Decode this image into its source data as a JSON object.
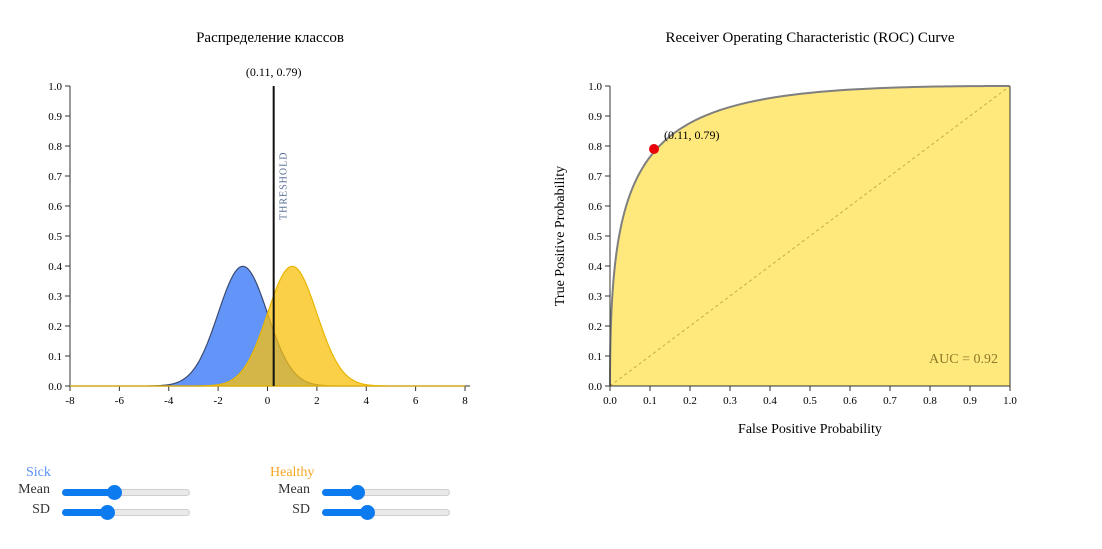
{
  "colors": {
    "sick": "#5b8ff9",
    "healthy": "#f9c00c",
    "roc_fill": "#ffe97d",
    "roc_line": "#7f7f7f",
    "point": "#e8000b",
    "slider": "#0d7bf0",
    "sick_label": "#5b8ff9",
    "healthy_label": "#f5a623"
  },
  "chart_data": [
    {
      "type": "area",
      "title": "Распределение классов",
      "xlabel": "",
      "ylabel": "",
      "xlim": [
        -8,
        8
      ],
      "ylim": [
        0,
        1
      ],
      "x_ticks": [
        -8,
        -6,
        -4,
        -2,
        0,
        2,
        4,
        6,
        8
      ],
      "y_ticks": [
        0.0,
        0.1,
        0.2,
        0.3,
        0.4,
        0.5,
        0.6,
        0.7,
        0.8,
        0.9,
        1.0
      ],
      "series": [
        {
          "key": "sick",
          "distribution": "normal",
          "mean": -1,
          "sd": 1
        },
        {
          "key": "healthy",
          "distribution": "normal",
          "mean": 1,
          "sd": 1
        }
      ],
      "threshold": {
        "x": 0.25,
        "label": "THRESHOLD",
        "annotation": "(0.11, 0.79)"
      }
    },
    {
      "type": "line",
      "title": "Receiver Operating Characteristic (ROC) Curve",
      "xlabel": "False Positive Probability",
      "ylabel": "True Positive Probability",
      "xlim": [
        0,
        1
      ],
      "ylim": [
        0,
        1
      ],
      "x_ticks": [
        0.0,
        0.1,
        0.2,
        0.3,
        0.4,
        0.5,
        0.6,
        0.7,
        0.8,
        0.9,
        1.0
      ],
      "y_ticks": [
        0.0,
        0.1,
        0.2,
        0.3,
        0.4,
        0.5,
        0.6,
        0.7,
        0.8,
        0.9,
        1.0
      ],
      "auc_label": "AUC = 0.92",
      "point": {
        "x": 0.11,
        "y": 0.79,
        "label": "(0.11, 0.79)"
      },
      "diagonal": true
    }
  ],
  "controls": {
    "sick": {
      "title": "Sick",
      "mean_label": "Mean",
      "sd_label": "SD",
      "mean_level": 0.41,
      "sd_level": 0.35
    },
    "healthy": {
      "title": "Healthy",
      "mean_label": "Mean",
      "sd_label": "SD",
      "mean_level": 0.27,
      "sd_level": 0.35
    }
  }
}
